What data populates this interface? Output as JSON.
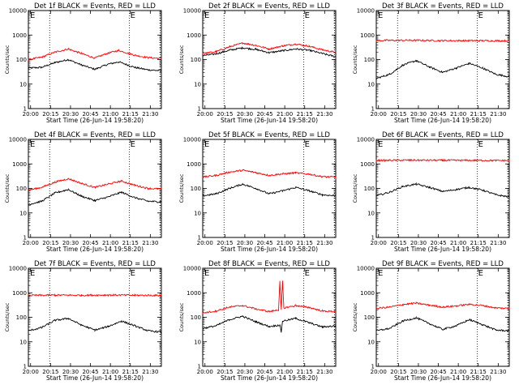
{
  "colors": {
    "events": "#000000",
    "lld": "#ff0000"
  },
  "common": {
    "xlabel": "Start Time (26-Jun-14 19:58:20)",
    "ylabel": "Counts/sec",
    "x_ticks": [
      "20:00",
      "20:15",
      "20:30",
      "20:45",
      "21:00",
      "21:15",
      "21:30"
    ],
    "y_ticks": [
      "1",
      "10",
      "100",
      "1000",
      "10000"
    ],
    "corner_left": "E",
    "corner_right": "E"
  },
  "chart_data": [
    {
      "type": "line",
      "scale": "log-y",
      "title": "Det 1f BLACK = Events, RED = LLD",
      "xlim_min": [
        0,
        100
      ],
      "ylim": [
        1,
        10000
      ],
      "vlines_min": [
        16,
        76,
        99
      ],
      "series": [
        {
          "values": [
            [
              0,
              45
            ],
            [
              10,
              48
            ],
            [
              20,
              75
            ],
            [
              30,
              100
            ],
            [
              40,
              60
            ],
            [
              50,
              40
            ],
            [
              60,
              65
            ],
            [
              68,
              80
            ],
            [
              80,
              48
            ],
            [
              90,
              38
            ],
            [
              100,
              35
            ]
          ]
        },
        {
          "values": [
            [
              0,
              100
            ],
            [
              10,
              125
            ],
            [
              20,
              200
            ],
            [
              30,
              270
            ],
            [
              40,
              175
            ],
            [
              50,
              115
            ],
            [
              60,
              185
            ],
            [
              68,
              235
            ],
            [
              80,
              150
            ],
            [
              90,
              120
            ],
            [
              100,
              110
            ]
          ]
        }
      ]
    },
    {
      "type": "line",
      "scale": "log-y",
      "title": "Det 2f BLACK = Events, RED = LLD",
      "xlim_min": [
        0,
        100
      ],
      "ylim": [
        1,
        10000
      ],
      "vlines_min": [
        16,
        76,
        99
      ],
      "series": [
        {
          "values": [
            [
              0,
              145
            ],
            [
              10,
              170
            ],
            [
              20,
              240
            ],
            [
              30,
              300
            ],
            [
              40,
              260
            ],
            [
              50,
              190
            ],
            [
              60,
              230
            ],
            [
              70,
              270
            ],
            [
              80,
              240
            ],
            [
              90,
              175
            ],
            [
              100,
              130
            ]
          ]
        },
        {
          "values": [
            [
              0,
              175
            ],
            [
              10,
              210
            ],
            [
              20,
              330
            ],
            [
              30,
              470
            ],
            [
              40,
              380
            ],
            [
              50,
              270
            ],
            [
              60,
              360
            ],
            [
              70,
              430
            ],
            [
              80,
              350
            ],
            [
              90,
              250
            ],
            [
              100,
              195
            ]
          ]
        }
      ]
    },
    {
      "type": "line",
      "scale": "log-y",
      "title": "Det 3f BLACK = Events, RED = LLD",
      "xlim_min": [
        0,
        100
      ],
      "ylim": [
        1,
        10000
      ],
      "vlines_min": [
        16,
        76,
        99
      ],
      "series": [
        {
          "values": [
            [
              0,
              17
            ],
            [
              10,
              25
            ],
            [
              20,
              60
            ],
            [
              30,
              90
            ],
            [
              40,
              50
            ],
            [
              50,
              30
            ],
            [
              60,
              45
            ],
            [
              70,
              70
            ],
            [
              80,
              45
            ],
            [
              90,
              25
            ],
            [
              100,
              20
            ]
          ]
        },
        {
          "values": [
            [
              0,
              600
            ],
            [
              25,
              610
            ],
            [
              50,
              590
            ],
            [
              75,
              590
            ],
            [
              100,
              580
            ]
          ]
        }
      ]
    },
    {
      "type": "line",
      "scale": "log-y",
      "title": "Det 4f BLACK = Events, RED = LLD",
      "xlim_min": [
        0,
        100
      ],
      "ylim": [
        1,
        10000
      ],
      "vlines_min": [
        16,
        76,
        99
      ],
      "series": [
        {
          "values": [
            [
              0,
              22
            ],
            [
              10,
              30
            ],
            [
              20,
              65
            ],
            [
              30,
              90
            ],
            [
              40,
              48
            ],
            [
              50,
              32
            ],
            [
              60,
              45
            ],
            [
              70,
              70
            ],
            [
              80,
              42
            ],
            [
              90,
              30
            ],
            [
              100,
              28
            ]
          ]
        },
        {
          "values": [
            [
              0,
              85
            ],
            [
              10,
              110
            ],
            [
              20,
              180
            ],
            [
              30,
              250
            ],
            [
              40,
              160
            ],
            [
              50,
              110
            ],
            [
              60,
              150
            ],
            [
              70,
              200
            ],
            [
              80,
              135
            ],
            [
              90,
              100
            ],
            [
              100,
              95
            ]
          ]
        }
      ]
    },
    {
      "type": "line",
      "scale": "log-y",
      "title": "Det 5f BLACK = Events, RED = LLD",
      "xlim_min": [
        0,
        100
      ],
      "ylim": [
        1,
        10000
      ],
      "vlines_min": [
        16,
        76,
        99
      ],
      "series": [
        {
          "values": [
            [
              0,
              50
            ],
            [
              10,
              60
            ],
            [
              20,
              100
            ],
            [
              30,
              150
            ],
            [
              40,
              100
            ],
            [
              50,
              60
            ],
            [
              60,
              80
            ],
            [
              70,
              110
            ],
            [
              80,
              80
            ],
            [
              90,
              55
            ],
            [
              100,
              50
            ]
          ]
        },
        {
          "values": [
            [
              0,
              290
            ],
            [
              10,
              340
            ],
            [
              20,
              460
            ],
            [
              30,
              550
            ],
            [
              40,
              440
            ],
            [
              50,
              340
            ],
            [
              60,
              390
            ],
            [
              70,
              430
            ],
            [
              80,
              380
            ],
            [
              90,
              300
            ],
            [
              100,
              290
            ]
          ]
        }
      ]
    },
    {
      "type": "line",
      "scale": "log-y",
      "title": "Det 6f BLACK = Events, RED = LLD",
      "xlim_min": [
        0,
        100
      ],
      "ylim": [
        1,
        10000
      ],
      "vlines_min": [
        16,
        76,
        99
      ],
      "series": [
        {
          "values": [
            [
              0,
              50
            ],
            [
              10,
              70
            ],
            [
              20,
              120
            ],
            [
              30,
              150
            ],
            [
              40,
              110
            ],
            [
              50,
              75
            ],
            [
              60,
              90
            ],
            [
              70,
              110
            ],
            [
              80,
              85
            ],
            [
              90,
              55
            ],
            [
              100,
              45
            ]
          ]
        },
        {
          "values": [
            [
              0,
              1380
            ],
            [
              25,
              1420
            ],
            [
              50,
              1400
            ],
            [
              75,
              1390
            ],
            [
              100,
              1370
            ]
          ]
        }
      ]
    },
    {
      "type": "line",
      "scale": "log-y",
      "title": "Det 7f BLACK = Events, RED = LLD",
      "xlim_min": [
        0,
        100
      ],
      "ylim": [
        1,
        10000
      ],
      "vlines_min": [
        16,
        76,
        99
      ],
      "series": [
        {
          "values": [
            [
              0,
              28
            ],
            [
              10,
              38
            ],
            [
              20,
              75
            ],
            [
              30,
              90
            ],
            [
              40,
              48
            ],
            [
              50,
              30
            ],
            [
              60,
              42
            ],
            [
              70,
              70
            ],
            [
              80,
              45
            ],
            [
              90,
              28
            ],
            [
              100,
              25
            ]
          ]
        },
        {
          "values": [
            [
              0,
              780
            ],
            [
              20,
              800
            ],
            [
              40,
              790
            ],
            [
              60,
              810
            ],
            [
              80,
              790
            ],
            [
              100,
              780
            ]
          ]
        }
      ]
    },
    {
      "type": "line",
      "scale": "log-y",
      "title": "Det 8f BLACK = Events, RED = LLD",
      "xlim_min": [
        0,
        100
      ],
      "ylim": [
        1,
        10000
      ],
      "vlines_min": [
        16,
        76,
        99
      ],
      "series": [
        {
          "values": [
            [
              0,
              35
            ],
            [
              10,
              45
            ],
            [
              20,
              80
            ],
            [
              30,
              110
            ],
            [
              40,
              65
            ],
            [
              50,
              42
            ],
            [
              58,
              48
            ],
            [
              59,
              25
            ],
            [
              60,
              70
            ],
            [
              70,
              90
            ],
            [
              80,
              60
            ],
            [
              90,
              40
            ],
            [
              100,
              45
            ]
          ]
        },
        {
          "values": [
            [
              0,
              150
            ],
            [
              10,
              180
            ],
            [
              20,
              260
            ],
            [
              30,
              300
            ],
            [
              40,
              220
            ],
            [
              50,
              170
            ],
            [
              57,
              200
            ],
            [
              58,
              3000
            ],
            [
              59,
              200
            ],
            [
              60,
              3000
            ],
            [
              61,
              240
            ],
            [
              70,
              300
            ],
            [
              80,
              250
            ],
            [
              90,
              180
            ],
            [
              100,
              170
            ]
          ]
        }
      ]
    },
    {
      "type": "line",
      "scale": "log-y",
      "title": "Det 9f BLACK = Events, RED = LLD",
      "xlim_min": [
        0,
        100
      ],
      "ylim": [
        1,
        10000
      ],
      "vlines_min": [
        16,
        76,
        99
      ],
      "series": [
        {
          "values": [
            [
              0,
              28
            ],
            [
              10,
              35
            ],
            [
              20,
              70
            ],
            [
              30,
              95
            ],
            [
              40,
              55
            ],
            [
              50,
              32
            ],
            [
              60,
              45
            ],
            [
              70,
              80
            ],
            [
              80,
              50
            ],
            [
              90,
              30
            ],
            [
              100,
              28
            ]
          ]
        },
        {
          "values": [
            [
              0,
              230
            ],
            [
              10,
              260
            ],
            [
              20,
              330
            ],
            [
              30,
              380
            ],
            [
              40,
              310
            ],
            [
              50,
              260
            ],
            [
              60,
              290
            ],
            [
              70,
              340
            ],
            [
              80,
              300
            ],
            [
              90,
              240
            ],
            [
              100,
              230
            ]
          ]
        }
      ]
    }
  ]
}
